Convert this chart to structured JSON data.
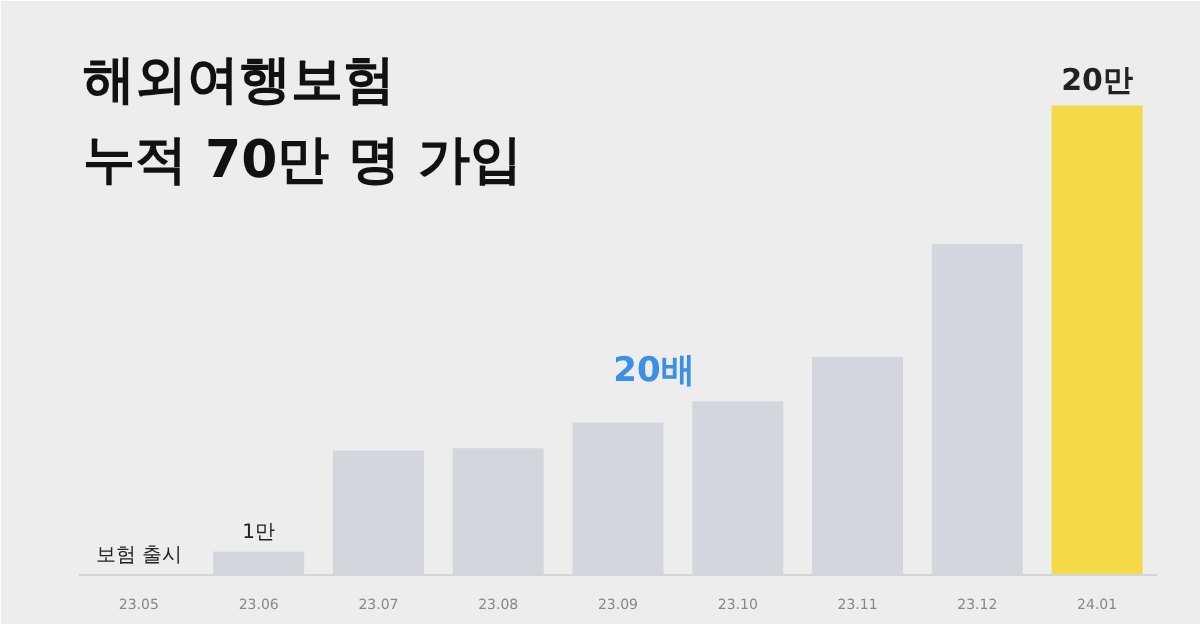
{
  "chart_data": {
    "type": "bar",
    "title": "해외여행보험\n누적 70만 명 가입",
    "categories": [
      "23.05",
      "23.06",
      "23.07",
      "23.08",
      "23.09",
      "23.10",
      "23.11",
      "23.12",
      "24.01"
    ],
    "values": [
      null,
      1,
      5.3,
      5.4,
      6.5,
      7.4,
      9.3,
      14.1,
      20
    ],
    "colors": [
      "#d3d7dd",
      "#d3d7dd",
      "#d3d7dd",
      "#d3d7dd",
      "#d3d7dd",
      "#d3d7dd",
      "#d3d7dd",
      "#d3d7dd",
      "#f5d949"
    ],
    "value_labels": [
      null,
      "1만",
      null,
      null,
      null,
      null,
      null,
      null,
      "20만"
    ],
    "annotations": [
      "보험 출시",
      "20배"
    ],
    "grid": false
  }
}
